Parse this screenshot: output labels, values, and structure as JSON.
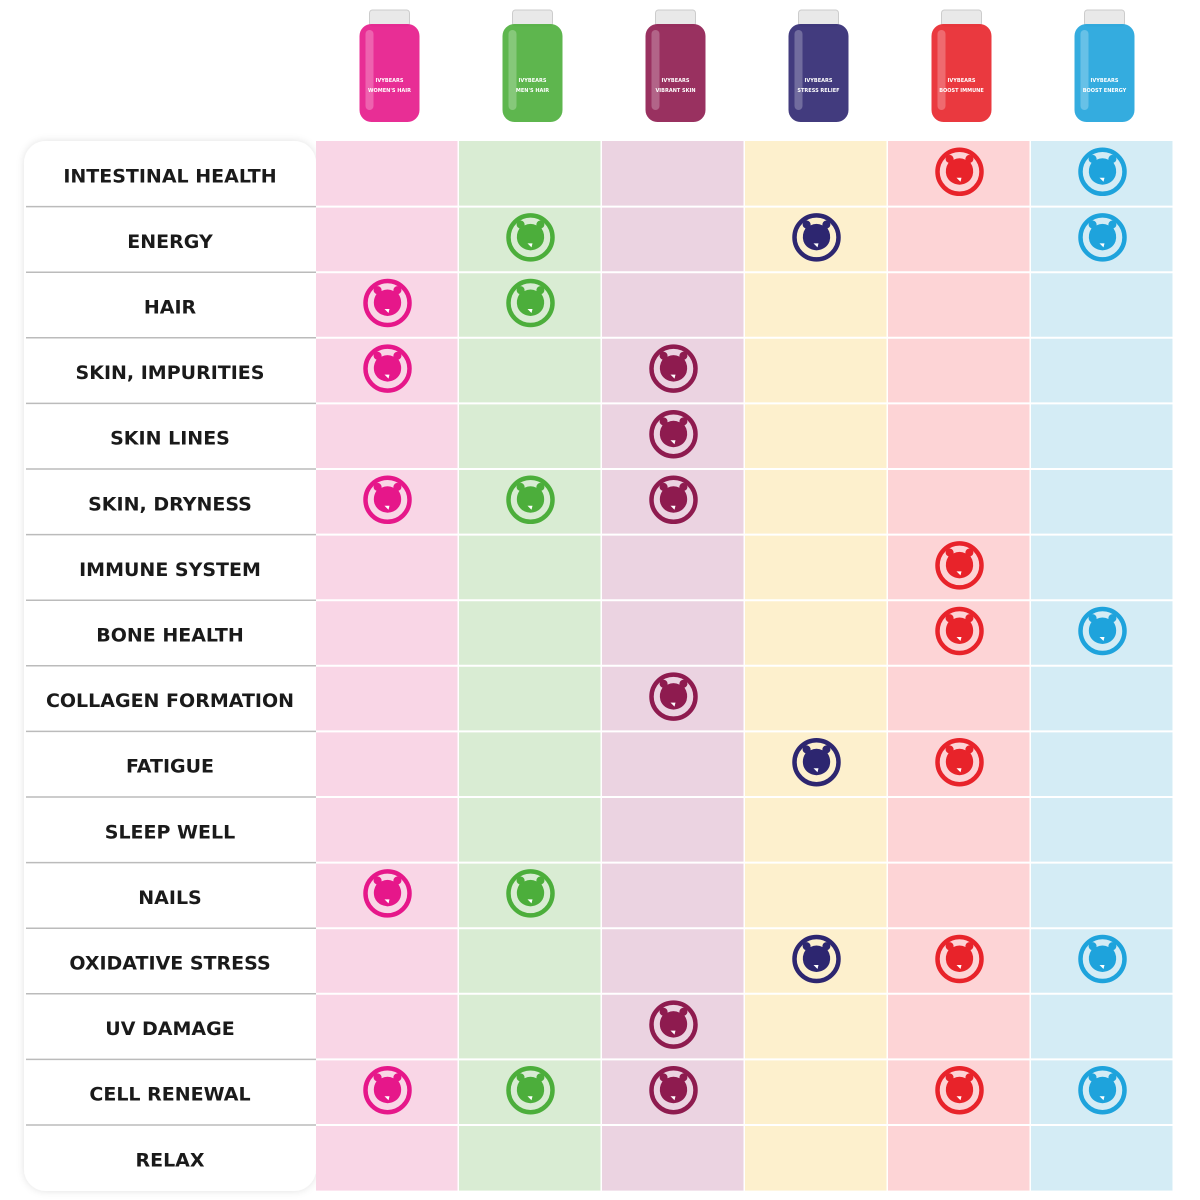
{
  "header": {
    "products": [
      {
        "brand": "IVYBEARS",
        "name": "WOMEN'S HAIR",
        "color": "#e6178a",
        "background": "#f9d6e6"
      },
      {
        "brand": "IVYBEARS",
        "name": "MEN'S HAIR",
        "color": "#4cae3b",
        "background": "#d9ecd3"
      },
      {
        "brand": "IVYBEARS",
        "name": "VIBRANT SKIN",
        "color": "#8e1b4f",
        "background": "#ebd3e1"
      },
      {
        "brand": "IVYBEARS",
        "name": "STRESS RELIEF",
        "color": "#2d2670",
        "background": "#fdf0cd"
      },
      {
        "brand": "IVYBEARS",
        "name": "BOOST IMMUNE",
        "color": "#e8232a",
        "background": "#fdd4d6"
      },
      {
        "brand": "IVYBEARS",
        "name": "BOOST ENERGY",
        "color": "#1ea3dc",
        "background": "#d4ecf5"
      }
    ]
  },
  "table": {
    "rows": [
      {
        "label": "INTESTINAL HEALTH",
        "cells": [
          false,
          false,
          false,
          false,
          true,
          true
        ]
      },
      {
        "label": "ENERGY",
        "cells": [
          false,
          true,
          false,
          true,
          false,
          true
        ]
      },
      {
        "label": "HAIR",
        "cells": [
          true,
          true,
          false,
          false,
          false,
          false
        ]
      },
      {
        "label": "SKIN, IMPURITIES",
        "cells": [
          true,
          false,
          true,
          false,
          false,
          false
        ]
      },
      {
        "label": "SKIN LINES",
        "cells": [
          false,
          false,
          true,
          false,
          false,
          false
        ]
      },
      {
        "label": "SKIN, DRYNESS",
        "cells": [
          true,
          true,
          true,
          false,
          false,
          false
        ]
      },
      {
        "label": "IMMUNE SYSTEM",
        "cells": [
          false,
          false,
          false,
          false,
          true,
          false
        ]
      },
      {
        "label": "BONE HEALTH",
        "cells": [
          false,
          false,
          false,
          false,
          true,
          true
        ]
      },
      {
        "label": "COLLAGEN FORMATION",
        "cells": [
          false,
          false,
          true,
          false,
          false,
          false
        ]
      },
      {
        "label": "FATIGUE",
        "cells": [
          false,
          false,
          false,
          true,
          true,
          false
        ]
      },
      {
        "label": "SLEEP WELL",
        "cells": [
          false,
          false,
          false,
          false,
          false,
          false
        ]
      },
      {
        "label": "NAILS",
        "cells": [
          true,
          true,
          false,
          false,
          false,
          false
        ]
      },
      {
        "label": "OXIDATIVE STRESS",
        "cells": [
          false,
          false,
          false,
          true,
          true,
          true
        ]
      },
      {
        "label": "UV DAMAGE",
        "cells": [
          false,
          false,
          true,
          false,
          false,
          false
        ]
      },
      {
        "label": "CELL RENEWAL",
        "cells": [
          true,
          true,
          true,
          false,
          true,
          true
        ]
      },
      {
        "label": "RELAX",
        "cells": [
          false,
          false,
          false,
          false,
          false,
          false
        ]
      }
    ]
  }
}
